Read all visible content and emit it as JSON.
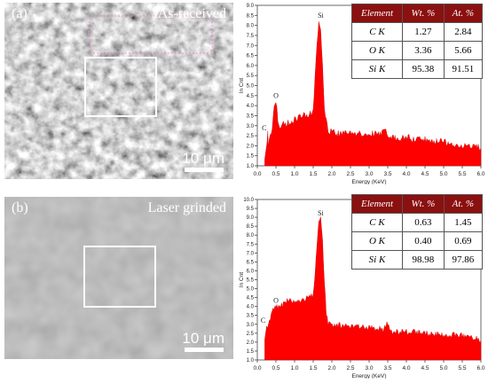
{
  "panels": [
    {
      "tag": "(a)",
      "condition": "As-received",
      "scale": "10 μm",
      "table": {
        "headers": [
          "Element",
          "Wt. %",
          "At. %"
        ],
        "rows": [
          [
            "C K",
            "1.27",
            "2.84"
          ],
          [
            "O K",
            "3.36",
            "5.66"
          ],
          [
            "Si K",
            "95.38",
            "91.51"
          ]
        ]
      }
    },
    {
      "tag": "(b)",
      "condition": "Laser grinded",
      "scale": "10 μm",
      "table": {
        "headers": [
          "Element",
          "Wt. %",
          "At. %"
        ],
        "rows": [
          [
            "C K",
            "0.63",
            "1.45"
          ],
          [
            "O K",
            "0.40",
            "0.69"
          ],
          [
            "Si K",
            "98.98",
            "97.86"
          ]
        ]
      }
    }
  ],
  "chart_data": [
    {
      "type": "area",
      "xlabel": "Energy (KeV)",
      "ylabel": "ln Cnt",
      "xlim": [
        0,
        6
      ],
      "ylim": [
        1.0,
        9.0
      ],
      "x_ticks": [
        "0.0",
        "0.5",
        "1.0",
        "1.5",
        "2.0",
        "2.5",
        "3.0",
        "3.5",
        "4.0",
        "4.5",
        "5.0",
        "5.5",
        "6.0"
      ],
      "y_ticks": [
        "1.0",
        "1.5",
        "2.0",
        "2.5",
        "3.0",
        "3.5",
        "4.0",
        "4.5",
        "5.0",
        "5.5",
        "6.0",
        "6.5",
        "7.0",
        "7.5",
        "8.0",
        "8.5",
        "9.0"
      ],
      "color": "#ff0000",
      "x": [
        0.2,
        0.25,
        0.28,
        0.3,
        0.35,
        0.4,
        0.45,
        0.5,
        0.52,
        0.55,
        0.6,
        0.7,
        0.8,
        0.9,
        1.0,
        1.1,
        1.2,
        1.3,
        1.4,
        1.5,
        1.55,
        1.6,
        1.65,
        1.7,
        1.75,
        1.8,
        1.85,
        1.9,
        2.0,
        2.1,
        2.5,
        3.0,
        3.3,
        3.45,
        3.5,
        3.6,
        4.0,
        4.5,
        5.0,
        5.5,
        6.0
      ],
      "y": [
        1.3,
        2.0,
        2.6,
        2.1,
        2.4,
        3.0,
        3.8,
        4.2,
        3.9,
        3.1,
        3.0,
        3.1,
        3.1,
        3.2,
        3.3,
        3.4,
        3.5,
        3.5,
        3.6,
        3.7,
        5.5,
        7.0,
        8.2,
        7.8,
        6.0,
        3.9,
        3.2,
        2.7,
        2.7,
        2.6,
        2.6,
        2.6,
        2.55,
        3.0,
        2.5,
        2.4,
        2.4,
        2.3,
        2.2,
        2.0,
        1.9
      ],
      "peak_labels": [
        {
          "text": "C",
          "x": 0.28,
          "y": 2.6
        },
        {
          "text": "O",
          "x": 0.5,
          "y": 4.2
        },
        {
          "text": "Si",
          "x": 1.7,
          "y": 8.2
        }
      ]
    },
    {
      "type": "area",
      "xlabel": "Energy (KeV)",
      "ylabel": "ln Cnt",
      "xlim": [
        0,
        6
      ],
      "ylim": [
        1.0,
        10.0
      ],
      "x_ticks": [
        "0.0",
        "0.5",
        "1.0",
        "1.5",
        "2.0",
        "2.5",
        "3.0",
        "3.5",
        "4.0",
        "4.5",
        "5.0",
        "5.5",
        "6.0"
      ],
      "y_ticks": [
        "1.0",
        "1.5",
        "2.0",
        "2.5",
        "3.0",
        "3.5",
        "4.0",
        "4.5",
        "5.0",
        "5.5",
        "6.0",
        "6.5",
        "7.0",
        "7.5",
        "8.0",
        "8.5",
        "9.0",
        "9.5",
        "10.0"
      ],
      "color": "#ff0000",
      "x": [
        0.2,
        0.25,
        0.3,
        0.35,
        0.4,
        0.5,
        0.6,
        0.7,
        0.8,
        1.0,
        1.2,
        1.4,
        1.5,
        1.55,
        1.6,
        1.65,
        1.7,
        1.75,
        1.8,
        1.85,
        1.9,
        2.0,
        2.5,
        3.0,
        3.4,
        3.5,
        3.6,
        4.0,
        4.5,
        5.0,
        5.5,
        6.0
      ],
      "y": [
        2.1,
        2.9,
        3.0,
        3.3,
        3.8,
        4.0,
        4.0,
        4.1,
        4.3,
        4.3,
        4.4,
        4.5,
        4.6,
        5.8,
        7.5,
        8.7,
        8.9,
        7.6,
        5.5,
        3.6,
        3.0,
        3.0,
        2.9,
        2.8,
        2.7,
        3.1,
        2.6,
        2.6,
        2.5,
        2.4,
        2.4,
        2.1
      ],
      "peak_labels": [
        {
          "text": "C",
          "x": 0.25,
          "y": 2.9
        },
        {
          "text": "O",
          "x": 0.5,
          "y": 4.0
        },
        {
          "text": "Si",
          "x": 1.7,
          "y": 8.9
        }
      ]
    }
  ]
}
